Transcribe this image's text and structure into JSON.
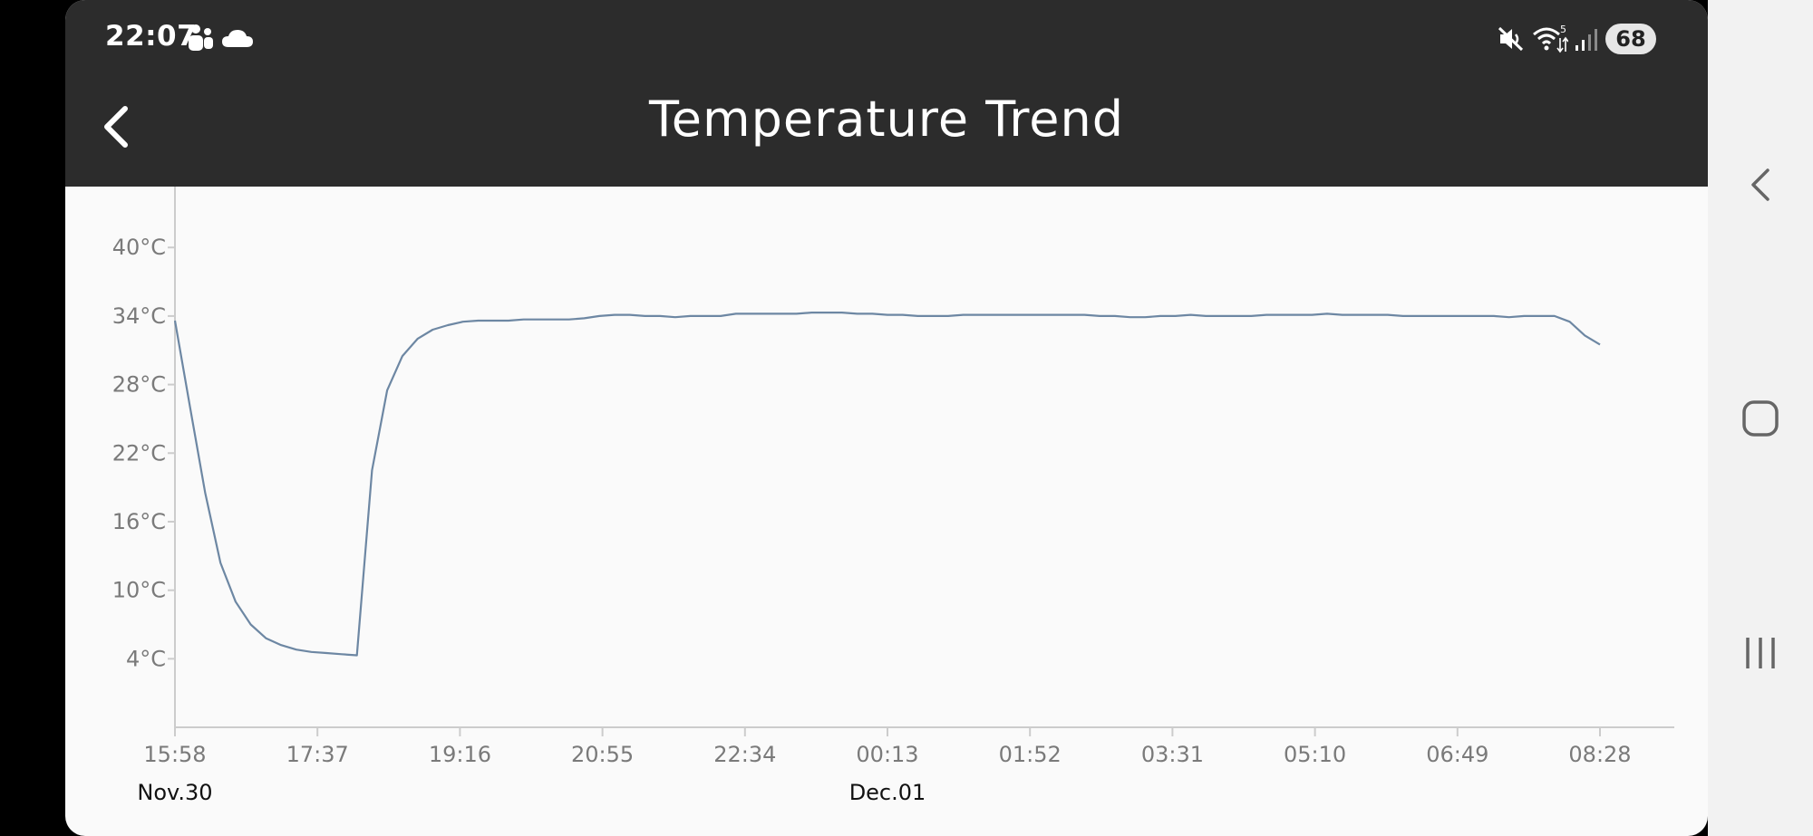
{
  "status_bar": {
    "time": "22:07",
    "battery": "68",
    "icons": [
      "teams-icon",
      "cloud-icon",
      "mute-icon",
      "wifi-icon",
      "signal-icon",
      "battery-icon"
    ]
  },
  "header": {
    "title": "Temperature Trend",
    "back_icon": "chevron-left-icon"
  },
  "nav_bar": {
    "buttons": [
      "back-nav-icon",
      "home-nav-icon",
      "recents-nav-icon"
    ]
  },
  "colors": {
    "header_bg": "#2c2c2c",
    "chart_bg": "#fafafa",
    "line": "#6d87a3",
    "axis": "#cccccc"
  },
  "chart_data": {
    "type": "line",
    "title": "Temperature Trend",
    "y_unit": "°C",
    "ylim": [
      -2,
      42
    ],
    "yticks": [
      4,
      10,
      16,
      22,
      28,
      34,
      40
    ],
    "ytick_labels": [
      "4°C",
      "10°C",
      "16°C",
      "22°C",
      "28°C",
      "34°C",
      "40°C"
    ],
    "xticks": [
      "15:58",
      "17:37",
      "19:16",
      "20:55",
      "22:34",
      "00:13",
      "01:52",
      "03:31",
      "05:10",
      "06:49",
      "08:28"
    ],
    "date_labels": [
      {
        "at": "15:58",
        "text": "Nov.30"
      },
      {
        "at": "00:13",
        "text": "Dec.01"
      }
    ],
    "x_start": "2023-11-30 15:58",
    "x_interval_minutes": 10,
    "grid": false,
    "series": [
      {
        "name": "",
        "color": "#6d87a3",
        "values": [
          33.6,
          26,
          18.5,
          12.4,
          9.0,
          7.0,
          5.8,
          5.2,
          4.8,
          4.6,
          4.5,
          4.4,
          4.3,
          20.5,
          27.5,
          30.5,
          32.0,
          32.8,
          33.2,
          33.5,
          33.6,
          33.6,
          33.6,
          33.7,
          33.7,
          33.7,
          33.7,
          33.8,
          34.0,
          34.1,
          34.1,
          34.0,
          34.0,
          33.9,
          34.0,
          34.0,
          34.0,
          34.2,
          34.2,
          34.2,
          34.2,
          34.2,
          34.3,
          34.3,
          34.3,
          34.2,
          34.2,
          34.1,
          34.1,
          34.0,
          34.0,
          34.0,
          34.1,
          34.1,
          34.1,
          34.1,
          34.1,
          34.1,
          34.1,
          34.1,
          34.1,
          34.0,
          34.0,
          33.9,
          33.9,
          34.0,
          34.0,
          34.1,
          34.0,
          34.0,
          34.0,
          34.0,
          34.1,
          34.1,
          34.1,
          34.1,
          34.2,
          34.1,
          34.1,
          34.1,
          34.1,
          34.0,
          34.0,
          34.0,
          34.0,
          34.0,
          34.0,
          34.0,
          33.9,
          34.0,
          34.0,
          34.0,
          33.5,
          32.3,
          31.5
        ]
      }
    ]
  }
}
